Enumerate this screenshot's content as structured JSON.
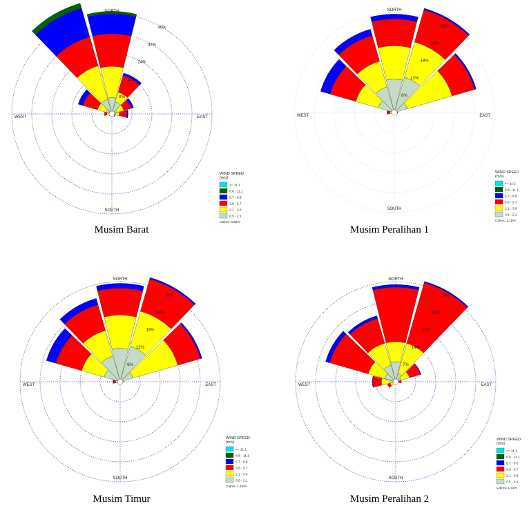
{
  "speed_bins": [
    "0.5 - 2.1",
    "2.1 - 3.6",
    "3.6 - 5.7",
    "5.7 - 8.8",
    "8.8 - 11.1",
    ">= 11.1"
  ],
  "bin_colors": [
    "#c5dcc4",
    "#ffff00",
    "#ff0000",
    "#0000ff",
    "#006400",
    "#00e5ee"
  ],
  "legend_order": [
    5,
    4,
    3,
    2,
    1,
    0
  ],
  "directions": [
    "NORTH",
    "EAST",
    "SOUTH",
    "WEST"
  ],
  "legend_title_1": "WIND SPEED",
  "legend_title_2": "(m/s)",
  "chart_data": [
    {
      "type": "windrose",
      "title": "Musim Barat",
      "calms": "Calms: 8.55%",
      "ring_labels": [
        "8%",
        "16%",
        "24%",
        "32%",
        "40%"
      ],
      "sectors_deg": [
        0,
        30,
        60,
        90,
        120,
        150,
        180,
        210,
        240,
        270,
        300,
        330
      ],
      "cumulative_percent_by_sector": [
        [
          6.5,
          19,
          32,
          40,
          41,
          41
        ],
        [
          5,
          9,
          16,
          17,
          17,
          17
        ],
        [
          2,
          5,
          8,
          9,
          9,
          9
        ],
        [
          1.5,
          3,
          6,
          6.5,
          6.5,
          6.5
        ],
        [
          0.5,
          1,
          1.5,
          1.5,
          1.5,
          1.5
        ],
        [
          0.5,
          0.5,
          0.5,
          0.5,
          0.5,
          0.5
        ],
        [
          0.5,
          0.5,
          0.5,
          0.5,
          0.5,
          0.5
        ],
        [
          0.5,
          0.5,
          0.5,
          0.5,
          0.5,
          0.5
        ],
        [
          0.5,
          0.8,
          1.2,
          1.2,
          1.2,
          1.2
        ],
        [
          1,
          2,
          3,
          3,
          3,
          3
        ],
        [
          2.5,
          6,
          12,
          14,
          14,
          14
        ],
        [
          6,
          20,
          32,
          44,
          46,
          46
        ]
      ]
    },
    {
      "type": "windrose",
      "title": "Musim Peralihan 1",
      "calms": "Calms: 1.18%",
      "ring_labels": [
        "6%",
        "12%",
        "18%",
        "24%",
        "30%"
      ],
      "sectors_deg": [
        0,
        30,
        60,
        90,
        120,
        150,
        180,
        210,
        240,
        270,
        300,
        330
      ],
      "cumulative_percent_by_sector": [
        [
          10,
          20,
          28,
          29.5,
          29.5,
          29.5
        ],
        [
          11,
          22,
          32,
          32.5,
          32.5,
          32.5
        ],
        [
          4,
          18,
          25,
          25.5,
          25.5,
          25.5
        ],
        [
          0.6,
          0.8,
          1,
          1,
          1,
          1
        ],
        [
          0.5,
          0.5,
          0.5,
          0.5,
          0.5,
          0.5
        ],
        [
          0.5,
          0.5,
          0.5,
          0.5,
          0.5,
          0.5
        ],
        [
          0.5,
          0.5,
          0.5,
          0.5,
          0.5,
          0.5
        ],
        [
          0.5,
          0.5,
          0.5,
          0.5,
          0.5,
          0.5
        ],
        [
          0.5,
          0.5,
          0.5,
          0.5,
          0.5,
          0.5
        ],
        [
          0.8,
          1.3,
          2,
          2.2,
          2.2,
          2.2
        ],
        [
          5,
          12,
          20,
          23,
          23,
          23
        ],
        [
          8,
          16,
          24,
          26,
          26,
          26
        ]
      ]
    },
    {
      "type": "windrose",
      "title": "Musim Timur",
      "calms": "Calms: 1.18%",
      "ring_labels": [
        "6%",
        "12%",
        "18%",
        "24%",
        "30%"
      ],
      "sectors_deg": [
        0,
        30,
        60,
        90,
        120,
        150,
        180,
        210,
        240,
        270,
        300,
        330
      ],
      "cumulative_percent_by_sector": [
        [
          10,
          20,
          28,
          29.5,
          29.5,
          29.5
        ],
        [
          11,
          22,
          32,
          32.5,
          32.5,
          32.5
        ],
        [
          4,
          18,
          25,
          25.5,
          25.5,
          25.5
        ],
        [
          0.6,
          0.8,
          1,
          1,
          1,
          1
        ],
        [
          0.5,
          0.5,
          0.5,
          0.5,
          0.5,
          0.5
        ],
        [
          0.5,
          0.5,
          0.5,
          0.5,
          0.5,
          0.5
        ],
        [
          0.5,
          0.5,
          0.5,
          0.5,
          0.5,
          0.5
        ],
        [
          0.5,
          0.5,
          0.5,
          0.5,
          0.5,
          0.5
        ],
        [
          0.5,
          0.5,
          0.5,
          0.5,
          0.5,
          0.5
        ],
        [
          0.8,
          1.3,
          2,
          2.2,
          2.2,
          2.2
        ],
        [
          5,
          12,
          20,
          23,
          23,
          23
        ],
        [
          8,
          16,
          24,
          26,
          26,
          26
        ]
      ]
    },
    {
      "type": "windrose",
      "title": "Musim Peralihan 2",
      "calms": "Calms: 1.41%",
      "ring_labels": [
        "7%",
        "14%",
        "21%",
        "28%",
        "35%"
      ],
      "sectors_deg": [
        0,
        30,
        60,
        90,
        120,
        150,
        180,
        210,
        240,
        270,
        300,
        330
      ],
      "cumulative_percent_by_sector": [
        [
          7,
          14,
          33,
          34,
          34,
          34
        ],
        [
          3,
          14,
          36,
          36.5,
          36.5,
          36.5
        ],
        [
          2,
          5,
          9,
          9.2,
          9.2,
          9.2
        ],
        [
          0.6,
          1,
          2,
          2,
          2,
          2
        ],
        [
          0.5,
          0.5,
          0.5,
          0.5,
          0.5,
          0.5
        ],
        [
          0.5,
          0.5,
          0.5,
          0.5,
          0.5,
          0.5
        ],
        [
          0.5,
          0.5,
          0.5,
          0.5,
          0.5,
          0.5
        ],
        [
          0.5,
          0.5,
          0.5,
          0.5,
          0.5,
          0.5
        ],
        [
          0.8,
          2,
          3,
          3,
          3,
          3
        ],
        [
          2,
          5,
          8,
          8.2,
          8.2,
          8.2
        ],
        [
          4,
          10,
          24,
          25.5,
          25.5,
          25.5
        ],
        [
          6,
          14,
          23,
          24,
          24,
          24
        ]
      ]
    }
  ]
}
